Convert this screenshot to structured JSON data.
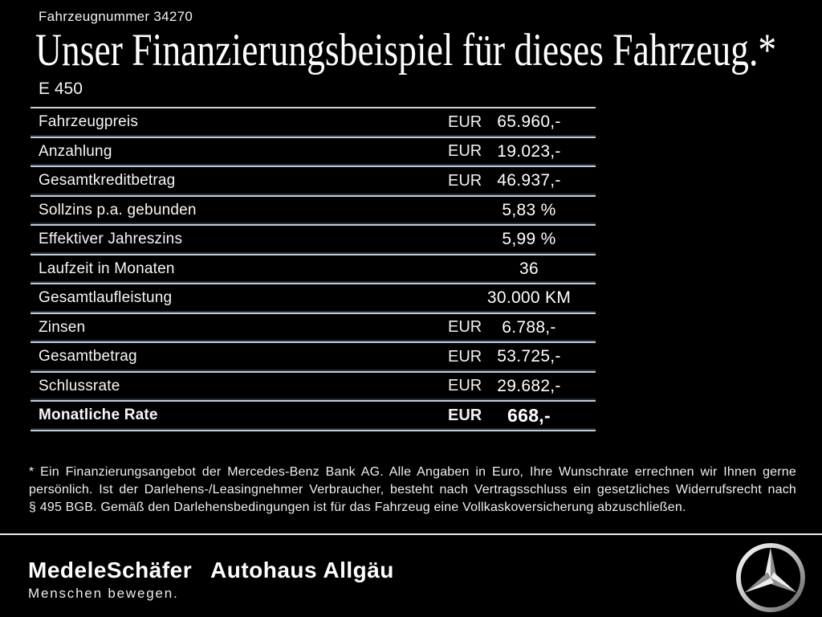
{
  "header": {
    "vehicle_number": "Fahrzeugnummer 34270",
    "title": "Unser Finanzierungsbeispiel für dieses Fahrzeug.*",
    "model": "E 450"
  },
  "table": {
    "rows": [
      {
        "label": "Fahrzeugpreis",
        "unit": "EUR",
        "value": "65.960,-",
        "bold": false
      },
      {
        "label": "Anzahlung",
        "unit": "EUR",
        "value": "19.023,-",
        "bold": false
      },
      {
        "label": "Gesamtkreditbetrag",
        "unit": "EUR",
        "value": "46.937,-",
        "bold": false
      },
      {
        "label": "Sollzins p.a. gebunden",
        "unit": "",
        "value": "5,83 %",
        "bold": false
      },
      {
        "label": "Effektiver Jahreszins",
        "unit": "",
        "value": "5,99 %",
        "bold": false
      },
      {
        "label": "Laufzeit in Monaten",
        "unit": "",
        "value": "36",
        "bold": false
      },
      {
        "label": "Gesamtlaufleistung",
        "unit": "",
        "value": "30.000 KM",
        "bold": false
      },
      {
        "label": "Zinsen",
        "unit": "EUR",
        "value": "6.788,-",
        "bold": false
      },
      {
        "label": "Gesamtbetrag",
        "unit": "EUR",
        "value": "53.725,-",
        "bold": false
      },
      {
        "label": "Schlussrate",
        "unit": "EUR",
        "value": "29.682,-",
        "bold": false
      },
      {
        "label": "Monatliche Rate",
        "unit": "EUR",
        "value": "668,-",
        "bold": true
      }
    ]
  },
  "footnote_lines": [
    "* Ein Finanzierungsangebot der Mercedes-Benz Bank AG. Alle Angaben in Euro, Ihre Wunschrate errechnen wir Ihnen gerne",
    "persönlich. Ist der Darlehens-/Leasingnehmer Verbraucher, besteht nach Vertragsschluss ein gesetzliches Widerrufsrecht nach",
    "§ 495 BGB. Gemäß den Darlehensbedingungen ist für das Fahrzeug eine Vollkaskoversicherung abzuschließen."
  ],
  "footer": {
    "dealer1_name": "MedeleSchäfer",
    "dealer1_tagline": "Menschen bewegen.",
    "dealer2_name": "Autohaus Allgäu",
    "brand_icon": "mercedes-star-icon"
  },
  "colors": {
    "background": "#000000",
    "text": "#ffffff",
    "separator_light": "#c3cbd3",
    "separator_dark": "#232e3d",
    "footer_divider": "#e9edf1"
  }
}
